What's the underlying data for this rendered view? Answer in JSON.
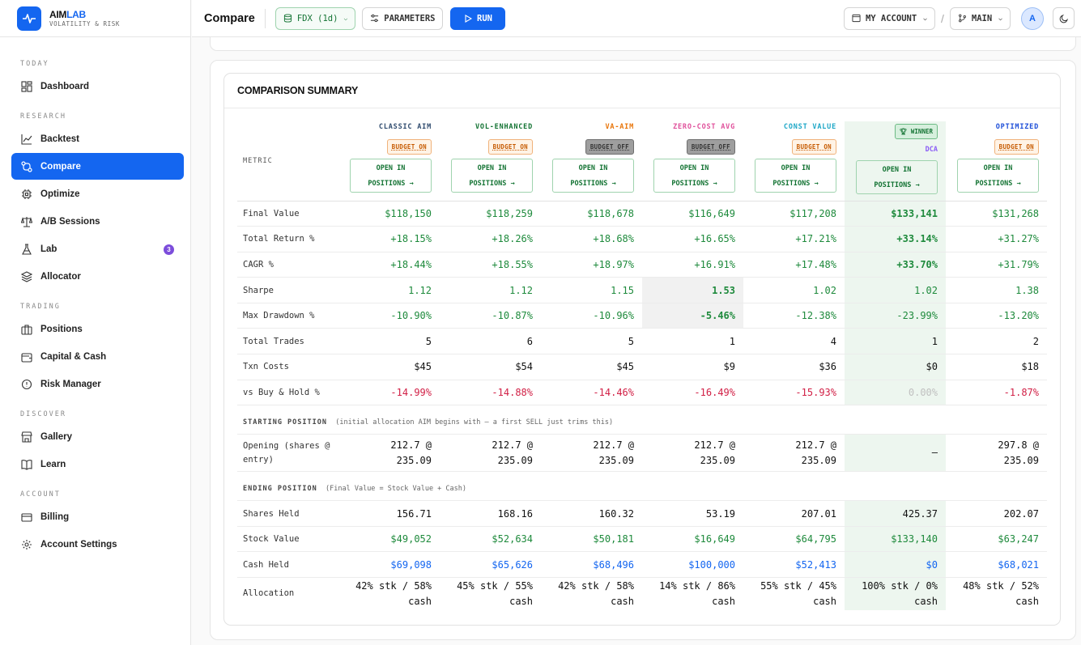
{
  "brand": {
    "name_a": "AIM",
    "name_b": "LAB",
    "subtitle": "VOLATILITY & RISK"
  },
  "sidebar": {
    "sections": [
      {
        "label": "TODAY",
        "items": [
          {
            "label": "Dashboard",
            "icon": "dashboard-icon"
          }
        ]
      },
      {
        "label": "RESEARCH",
        "items": [
          {
            "label": "Backtest",
            "icon": "chart-line-icon"
          },
          {
            "label": "Compare",
            "icon": "compare-icon",
            "active": true
          },
          {
            "label": "Optimize",
            "icon": "optimize-icon"
          },
          {
            "label": "A/B Sessions",
            "icon": "scales-icon"
          },
          {
            "label": "Lab",
            "icon": "flask-icon",
            "badge": "3"
          },
          {
            "label": "Allocator",
            "icon": "layers-icon"
          }
        ]
      },
      {
        "label": "TRADING",
        "items": [
          {
            "label": "Positions",
            "icon": "briefcase-icon"
          },
          {
            "label": "Capital & Cash",
            "icon": "wallet-icon"
          },
          {
            "label": "Risk Manager",
            "icon": "shield-icon"
          }
        ]
      },
      {
        "label": "DISCOVER",
        "items": [
          {
            "label": "Gallery",
            "icon": "store-icon"
          },
          {
            "label": "Learn",
            "icon": "book-icon"
          }
        ]
      },
      {
        "label": "ACCOUNT",
        "items": [
          {
            "label": "Billing",
            "icon": "card-icon"
          },
          {
            "label": "Account Settings",
            "icon": "gear-icon"
          }
        ]
      }
    ]
  },
  "topbar": {
    "title": "Compare",
    "dataset": "FDX (1d)",
    "parameters": "PARAMETERS",
    "run": "RUN",
    "account": "MY ACCOUNT",
    "slash": "/",
    "branch": "MAIN",
    "avatar": "A"
  },
  "summary": {
    "title": "COMPARISON SUMMARY",
    "metric_header": "METRIC",
    "open_line1": "OPEN IN",
    "open_line2": "POSITIONS →",
    "winner_label": "WINNER",
    "strategies": [
      {
        "name": "CLASSIC AIM",
        "color": "#2f4b6e",
        "budget": "BUDGET ON",
        "budget_on": true
      },
      {
        "name": "VOL-ENHANCED",
        "color": "#137333",
        "budget": "BUDGET ON",
        "budget_on": true
      },
      {
        "name": "VA-AIM",
        "color": "#e8750a",
        "budget": "BUDGET OFF",
        "budget_on": false
      },
      {
        "name": "ZERO-COST AVG",
        "color": "#e0529c",
        "budget": "BUDGET OFF",
        "budget_on": false
      },
      {
        "name": "CONST VALUE",
        "color": "#1ea7c7",
        "budget": "BUDGET ON",
        "budget_on": true
      },
      {
        "name": "DCA",
        "color": "#8b5cf6",
        "budget": "",
        "winner": true
      },
      {
        "name": "OPTIMIZED",
        "color": "#1d4ed8",
        "budget": "BUDGET ON",
        "budget_on": true
      }
    ],
    "rows": [
      {
        "label": "Final Value",
        "values": [
          "$118,150",
          "$118,259",
          "$118,678",
          "$116,649",
          "$117,208",
          "$133,141",
          "$131,268"
        ]
      },
      {
        "label": "Total Return %",
        "values": [
          "+18.15%",
          "+18.26%",
          "+18.68%",
          "+16.65%",
          "+17.21%",
          "+33.14%",
          "+31.27%"
        ]
      },
      {
        "label": "CAGR %",
        "values": [
          "+18.44%",
          "+18.55%",
          "+18.97%",
          "+16.91%",
          "+17.48%",
          "+33.70%",
          "+31.79%"
        ]
      },
      {
        "label": "Sharpe",
        "values": [
          "1.12",
          "1.12",
          "1.15",
          "1.53",
          "1.02",
          "1.02",
          "1.38"
        ]
      },
      {
        "label": "Max Drawdown %",
        "values": [
          "-10.90%",
          "-10.87%",
          "-10.96%",
          "-5.46%",
          "-12.38%",
          "-23.99%",
          "-13.20%"
        ]
      },
      {
        "label": "Total Trades",
        "values": [
          "5",
          "6",
          "5",
          "1",
          "4",
          "1",
          "2"
        ]
      },
      {
        "label": "Txn Costs",
        "values": [
          "$45",
          "$54",
          "$45",
          "$9",
          "$36",
          "$0",
          "$18"
        ]
      },
      {
        "label": "vs Buy & Hold %",
        "values": [
          "-14.99%",
          "-14.88%",
          "-14.46%",
          "-16.49%",
          "-15.93%",
          "0.00%",
          "-1.87%"
        ]
      }
    ],
    "starting": {
      "title": "STARTING POSITION",
      "note": "(initial allocation AIM begins with — a first SELL just trims this)",
      "label": "Opening (shares @ entry)",
      "values": [
        [
          "212.7 @",
          "235.09"
        ],
        [
          "212.7 @",
          "235.09"
        ],
        [
          "212.7 @",
          "235.09"
        ],
        [
          "212.7 @",
          "235.09"
        ],
        [
          "212.7 @",
          "235.09"
        ],
        [
          "—",
          ""
        ],
        [
          "297.8 @",
          "235.09"
        ]
      ]
    },
    "ending": {
      "title": "ENDING POSITION",
      "note": "(Final Value = Stock Value + Cash)",
      "rows": [
        {
          "label": "Shares Held",
          "values": [
            "156.71",
            "168.16",
            "160.32",
            "53.19",
            "207.01",
            "425.37",
            "202.07"
          ]
        },
        {
          "label": "Stock Value",
          "values": [
            "$49,052",
            "$52,634",
            "$50,181",
            "$16,649",
            "$64,795",
            "$133,140",
            "$63,247"
          ]
        },
        {
          "label": "Cash Held",
          "values": [
            "$69,098",
            "$65,626",
            "$68,496",
            "$100,000",
            "$52,413",
            "$0",
            "$68,021"
          ]
        }
      ],
      "allocation": {
        "label": "Allocation",
        "values": [
          [
            "42% stk / 58%",
            "cash"
          ],
          [
            "45% stk / 55%",
            "cash"
          ],
          [
            "42% stk / 58%",
            "cash"
          ],
          [
            "14% stk / 86%",
            "cash"
          ],
          [
            "55% stk / 45%",
            "cash"
          ],
          [
            "100% stk / 0%",
            "cash"
          ],
          [
            "48% stk / 52%",
            "cash"
          ]
        ]
      }
    }
  },
  "colors": {
    "accent": "#1466f0",
    "positive": "#1e8a3c",
    "negative": "#d11f45",
    "winner_bg": "#edf6ef",
    "badge": "#7c4ddb"
  }
}
